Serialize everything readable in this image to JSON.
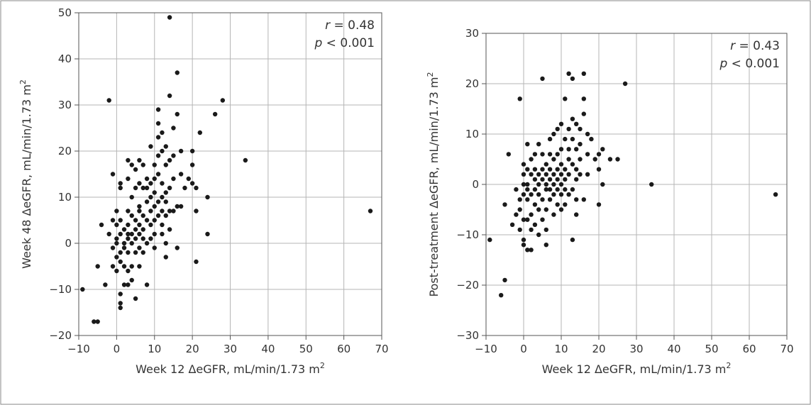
{
  "chart_data": [
    {
      "type": "scatter",
      "xlabel": "Week 12 ΔeGFR, mL/min/1.73 m",
      "xlabel_sup": "2",
      "ylabel": "Week 48 ΔeGFR, mL/min/1.73 m",
      "ylabel_sup": "2",
      "xlim": [
        -10,
        70
      ],
      "ylim": [
        -20,
        50
      ],
      "xticks": [
        -10,
        0,
        10,
        20,
        30,
        40,
        50,
        60,
        70
      ],
      "yticks": [
        -20,
        -10,
        0,
        10,
        20,
        30,
        40,
        50
      ],
      "xtick_labels": [
        "−10",
        "0",
        "10",
        "20",
        "30",
        "40",
        "50",
        "60",
        "70"
      ],
      "ytick_labels": [
        "−20",
        "−10",
        "0",
        "10",
        "20",
        "30",
        "40",
        "50"
      ],
      "grid": true,
      "annotation": {
        "r_symbol": "r",
        "r_text": " = 0.48",
        "p_symbol": "p",
        "p_text": " < 0.001"
      },
      "marker_color": "#1a1a1a",
      "points": [
        [
          -9,
          -10
        ],
        [
          -6,
          -17
        ],
        [
          -5,
          -17
        ],
        [
          -5,
          -5
        ],
        [
          -4,
          4
        ],
        [
          -3,
          -9
        ],
        [
          -2,
          31
        ],
        [
          -2,
          2
        ],
        [
          -1,
          -1
        ],
        [
          -1,
          -5
        ],
        [
          -1,
          5
        ],
        [
          -1,
          15
        ],
        [
          0,
          -3
        ],
        [
          0,
          -6
        ],
        [
          0,
          0
        ],
        [
          0,
          1
        ],
        [
          0,
          4
        ],
        [
          0,
          7
        ],
        [
          1,
          -11
        ],
        [
          1,
          -13
        ],
        [
          1,
          -14
        ],
        [
          1,
          -4
        ],
        [
          1,
          -2
        ],
        [
          1,
          2
        ],
        [
          1,
          5
        ],
        [
          1,
          12
        ],
        [
          1,
          13
        ],
        [
          2,
          -1
        ],
        [
          2,
          0
        ],
        [
          2,
          3
        ],
        [
          2,
          -5
        ],
        [
          2,
          -9
        ],
        [
          3,
          -9
        ],
        [
          3,
          4
        ],
        [
          3,
          1
        ],
        [
          3,
          2
        ],
        [
          3,
          -2
        ],
        [
          3,
          -6
        ],
        [
          3,
          7
        ],
        [
          3,
          18
        ],
        [
          3,
          14
        ],
        [
          4,
          -5
        ],
        [
          4,
          -8
        ],
        [
          4,
          0
        ],
        [
          4,
          2
        ],
        [
          4,
          6
        ],
        [
          4,
          10
        ],
        [
          4,
          17
        ],
        [
          5,
          -12
        ],
        [
          5,
          -2
        ],
        [
          5,
          3
        ],
        [
          5,
          1
        ],
        [
          5,
          5
        ],
        [
          5,
          12
        ],
        [
          5,
          16
        ],
        [
          6,
          -5
        ],
        [
          6,
          -1
        ],
        [
          6,
          2
        ],
        [
          6,
          7
        ],
        [
          6,
          4
        ],
        [
          6,
          8
        ],
        [
          6,
          13
        ],
        [
          6,
          18
        ],
        [
          7,
          -2
        ],
        [
          7,
          1
        ],
        [
          7,
          3
        ],
        [
          7,
          6
        ],
        [
          7,
          12
        ],
        [
          7,
          17
        ],
        [
          8,
          -9
        ],
        [
          8,
          0
        ],
        [
          8,
          5
        ],
        [
          8,
          9
        ],
        [
          8,
          12
        ],
        [
          8,
          14
        ],
        [
          9,
          1
        ],
        [
          9,
          4
        ],
        [
          9,
          7
        ],
        [
          9,
          10
        ],
        [
          9,
          21
        ],
        [
          9,
          13
        ],
        [
          10,
          5
        ],
        [
          10,
          8
        ],
        [
          10,
          11
        ],
        [
          10,
          2
        ],
        [
          10,
          -1
        ],
        [
          10,
          14
        ],
        [
          10,
          17
        ],
        [
          11,
          6
        ],
        [
          11,
          9
        ],
        [
          11,
          15
        ],
        [
          11,
          19
        ],
        [
          11,
          23
        ],
        [
          11,
          26
        ],
        [
          11,
          29
        ],
        [
          12,
          2
        ],
        [
          12,
          7
        ],
        [
          12,
          10
        ],
        [
          12,
          13
        ],
        [
          12,
          20
        ],
        [
          12,
          24
        ],
        [
          12,
          4
        ],
        [
          13,
          -3
        ],
        [
          13,
          0
        ],
        [
          13,
          6
        ],
        [
          13,
          9
        ],
        [
          13,
          11
        ],
        [
          13,
          17
        ],
        [
          13,
          21
        ],
        [
          14,
          49
        ],
        [
          14,
          3
        ],
        [
          14,
          7
        ],
        [
          14,
          12
        ],
        [
          14,
          18
        ],
        [
          14,
          32
        ],
        [
          15,
          7
        ],
        [
          15,
          14
        ],
        [
          15,
          19
        ],
        [
          15,
          25
        ],
        [
          16,
          -1
        ],
        [
          16,
          8
        ],
        [
          16,
          28
        ],
        [
          16,
          37
        ],
        [
          17,
          8
        ],
        [
          17,
          15
        ],
        [
          17,
          20
        ],
        [
          18,
          12
        ],
        [
          19,
          14
        ],
        [
          20,
          13
        ],
        [
          20,
          17
        ],
        [
          20,
          20
        ],
        [
          21,
          -4
        ],
        [
          21,
          7
        ],
        [
          21,
          12
        ],
        [
          22,
          24
        ],
        [
          24,
          2
        ],
        [
          24,
          10
        ],
        [
          26,
          28
        ],
        [
          28,
          31
        ],
        [
          34,
          18
        ],
        [
          67,
          7
        ]
      ]
    },
    {
      "type": "scatter",
      "xlabel": "Week 12 ΔeGFR, mL/min/1.73 m",
      "xlabel_sup": "2",
      "ylabel": "Post-treatment ΔeGFR, mL/min/1.73 m",
      "ylabel_sup": "2",
      "xlim": [
        -10,
        70
      ],
      "ylim": [
        -30,
        30
      ],
      "xticks": [
        -10,
        0,
        10,
        20,
        30,
        40,
        50,
        60,
        70
      ],
      "yticks": [
        -30,
        -20,
        -10,
        0,
        10,
        20,
        30
      ],
      "xtick_labels": [
        "−10",
        "0",
        "10",
        "20",
        "30",
        "40",
        "50",
        "60",
        "70"
      ],
      "ytick_labels": [
        "−30",
        "−20",
        "−10",
        "0",
        "10",
        "20",
        "30"
      ],
      "grid": true,
      "annotation": {
        "r_symbol": "r",
        "r_text": " = 0.43",
        "p_symbol": "p",
        "p_text": " < 0.001"
      },
      "marker_color": "#1a1a1a",
      "points": [
        [
          -9,
          -11
        ],
        [
          -6,
          -22
        ],
        [
          -5,
          -4
        ],
        [
          -5,
          -19
        ],
        [
          -4,
          6
        ],
        [
          -3,
          -8
        ],
        [
          -2,
          -6
        ],
        [
          -2,
          -1
        ],
        [
          -1,
          -3
        ],
        [
          -1,
          -9
        ],
        [
          -1,
          17
        ],
        [
          -1,
          -5
        ],
        [
          0,
          2
        ],
        [
          0,
          -2
        ],
        [
          0,
          -7
        ],
        [
          0,
          0
        ],
        [
          0,
          4
        ],
        [
          0,
          -11
        ],
        [
          0,
          -12
        ],
        [
          1,
          -13
        ],
        [
          1,
          3
        ],
        [
          1,
          8
        ],
        [
          1,
          -1
        ],
        [
          1,
          0
        ],
        [
          1,
          -3
        ],
        [
          1,
          -7
        ],
        [
          2,
          2
        ],
        [
          2,
          5
        ],
        [
          2,
          -2
        ],
        [
          2,
          -6
        ],
        [
          2,
          -9
        ],
        [
          2,
          -13
        ],
        [
          3,
          1
        ],
        [
          3,
          3
        ],
        [
          3,
          6
        ],
        [
          3,
          -4
        ],
        [
          3,
          -8
        ],
        [
          3,
          -1
        ],
        [
          4,
          0
        ],
        [
          4,
          2
        ],
        [
          4,
          -2
        ],
        [
          4,
          -5
        ],
        [
          4,
          -10
        ],
        [
          4,
          8
        ],
        [
          5,
          21
        ],
        [
          5,
          1
        ],
        [
          5,
          3
        ],
        [
          5,
          -3
        ],
        [
          5,
          -7
        ],
        [
          5,
          6
        ],
        [
          6,
          0
        ],
        [
          6,
          2
        ],
        [
          6,
          4
        ],
        [
          6,
          -1
        ],
        [
          6,
          -5
        ],
        [
          6,
          -9
        ],
        [
          6,
          -12
        ],
        [
          7,
          3
        ],
        [
          7,
          6
        ],
        [
          7,
          9
        ],
        [
          7,
          -1
        ],
        [
          7,
          -3
        ],
        [
          7,
          1
        ],
        [
          8,
          0
        ],
        [
          8,
          2
        ],
        [
          8,
          5
        ],
        [
          8,
          -2
        ],
        [
          8,
          10
        ],
        [
          8,
          -6
        ],
        [
          9,
          1
        ],
        [
          9,
          3
        ],
        [
          9,
          6
        ],
        [
          9,
          -1
        ],
        [
          9,
          -4
        ],
        [
          9,
          11
        ],
        [
          10,
          0
        ],
        [
          10,
          2
        ],
        [
          10,
          4
        ],
        [
          10,
          7
        ],
        [
          10,
          -2
        ],
        [
          10,
          12
        ],
        [
          10,
          -5
        ],
        [
          11,
          17
        ],
        [
          11,
          1
        ],
        [
          11,
          3
        ],
        [
          11,
          9
        ],
        [
          11,
          -1
        ],
        [
          11,
          -4
        ],
        [
          12,
          22
        ],
        [
          12,
          2
        ],
        [
          12,
          5
        ],
        [
          12,
          11
        ],
        [
          12,
          -2
        ],
        [
          12,
          7
        ],
        [
          13,
          21
        ],
        [
          13,
          13
        ],
        [
          13,
          4
        ],
        [
          13,
          -1
        ],
        [
          13,
          -11
        ],
        [
          13,
          9
        ],
        [
          14,
          12
        ],
        [
          14,
          3
        ],
        [
          14,
          7
        ],
        [
          14,
          -3
        ],
        [
          14,
          -6
        ],
        [
          14,
          1
        ],
        [
          15,
          11
        ],
        [
          15,
          5
        ],
        [
          15,
          2
        ],
        [
          15,
          8
        ],
        [
          16,
          22
        ],
        [
          16,
          17
        ],
        [
          16,
          14
        ],
        [
          16,
          -3
        ],
        [
          17,
          10
        ],
        [
          17,
          6
        ],
        [
          17,
          2
        ],
        [
          18,
          9
        ],
        [
          19,
          5
        ],
        [
          20,
          3
        ],
        [
          20,
          6
        ],
        [
          20,
          -4
        ],
        [
          21,
          7
        ],
        [
          21,
          0
        ],
        [
          23,
          5
        ],
        [
          25,
          5
        ],
        [
          27,
          20
        ],
        [
          34,
          0
        ],
        [
          67,
          -2
        ]
      ]
    }
  ]
}
